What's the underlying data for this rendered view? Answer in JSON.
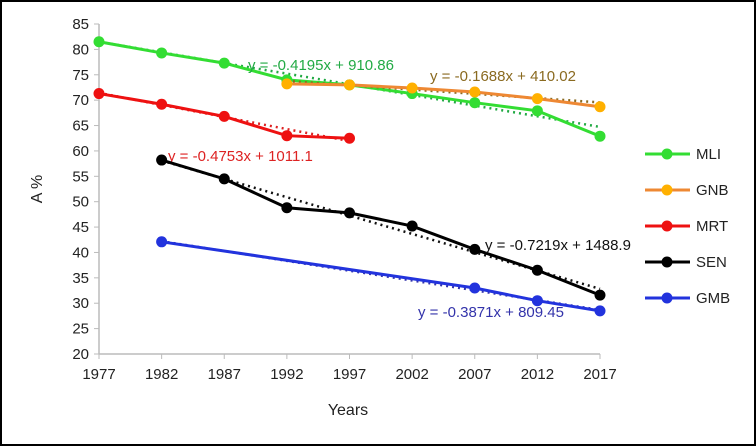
{
  "chart_data": {
    "type": "line",
    "title": "",
    "xlabel": "Years",
    "ylabel": "A %",
    "xlim": [
      1977,
      2017
    ],
    "ylim": [
      20,
      85
    ],
    "xticks": [
      1977,
      1982,
      1987,
      1992,
      1997,
      2002,
      2007,
      2012,
      2017
    ],
    "yticks": [
      20,
      25,
      30,
      35,
      40,
      45,
      50,
      55,
      60,
      65,
      70,
      75,
      80,
      85
    ],
    "grid": false,
    "legend_position": "right",
    "series": [
      {
        "name": "MLI",
        "color": "#33dd33",
        "trend_color": "#22aa44",
        "equation": "y = -0.4195x + 910.86",
        "slope": -0.4195,
        "intercept": 910.86,
        "x": [
          1977,
          1982,
          1987,
          1992,
          1997,
          2002,
          2007,
          2012,
          2017
        ],
        "y": [
          81.5,
          79.3,
          77.3,
          74.0,
          73.0,
          71.3,
          69.5,
          67.9,
          62.9
        ]
      },
      {
        "name": "GNB",
        "color": "#ee8833",
        "marker_color": "#ffb000",
        "trend_color": "#8a6a20",
        "equation": "y = -0.1688x + 410.02",
        "slope": -0.1688,
        "intercept": 410.02,
        "x": [
          1992,
          1997,
          2002,
          2007,
          2012,
          2017
        ],
        "y": [
          73.2,
          73.0,
          72.4,
          71.6,
          70.3,
          68.7
        ]
      },
      {
        "name": "MRT",
        "color": "#ee1111",
        "trend_color": "#dd2222",
        "equation": "y = -0.4753x + 1011.1",
        "slope": -0.4753,
        "intercept": 1011.1,
        "x": [
          1977,
          1982,
          1987,
          1992,
          1997
        ],
        "y": [
          71.3,
          69.2,
          66.8,
          63.0,
          62.5
        ]
      },
      {
        "name": "SEN",
        "color": "#000000",
        "trend_color": "#111111",
        "equation": "y = -0.7219x + 1488.9",
        "slope": -0.7219,
        "intercept": 1488.9,
        "x": [
          1982,
          1987,
          1992,
          1997,
          2002,
          2007,
          2012,
          2017
        ],
        "y": [
          58.2,
          54.5,
          48.8,
          47.8,
          45.2,
          40.6,
          36.5,
          31.6
        ]
      },
      {
        "name": "GMB",
        "color": "#2233dd",
        "trend_color": "#3333aa",
        "equation": "y = -0.3871x + 809.45",
        "slope": -0.3871,
        "intercept": 809.45,
        "x": [
          1982,
          2007,
          2012,
          2017
        ],
        "y": [
          42.1,
          33.0,
          30.5,
          28.5
        ]
      }
    ]
  }
}
